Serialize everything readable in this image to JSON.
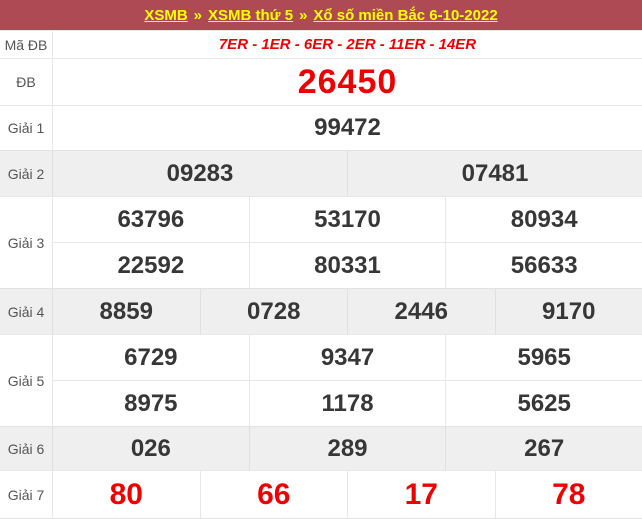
{
  "header": {
    "separator": "»",
    "links": [
      "XSMB",
      "XSMB thứ 5",
      "Xổ số miền Bắc 6-10-2022"
    ]
  },
  "table": {
    "rows": [
      {
        "label": "Mã ĐB",
        "values": [
          "7ER - 1ER - 6ER - 2ER - 11ER - 14ER"
        ]
      },
      {
        "label": "ĐB",
        "values": [
          "26450"
        ]
      },
      {
        "label": "Giải 1",
        "values": [
          "99472"
        ]
      },
      {
        "label": "Giải 2",
        "values": [
          "09283",
          "07481"
        ]
      },
      {
        "label": "Giải 3",
        "values": [
          [
            "63796",
            "53170",
            "80934"
          ],
          [
            "22592",
            "80331",
            "56633"
          ]
        ]
      },
      {
        "label": "Giải 4",
        "values": [
          "8859",
          "0728",
          "2446",
          "9170"
        ]
      },
      {
        "label": "Giải 5",
        "values": [
          [
            "6729",
            "9347",
            "5965"
          ],
          [
            "8975",
            "1178",
            "5625"
          ]
        ]
      },
      {
        "label": "Giải 6",
        "values": [
          "026",
          "289",
          "267"
        ]
      },
      {
        "label": "Giải 7",
        "values": [
          "80",
          "66",
          "17",
          "78"
        ]
      }
    ]
  },
  "colors": {
    "header_bg": "#ad4a54",
    "header_link": "#ffff00",
    "highlight_red": "#ee0000",
    "number_dark": "#373737",
    "row_gray_bg": "#efefef",
    "label_gray": "#555555"
  }
}
